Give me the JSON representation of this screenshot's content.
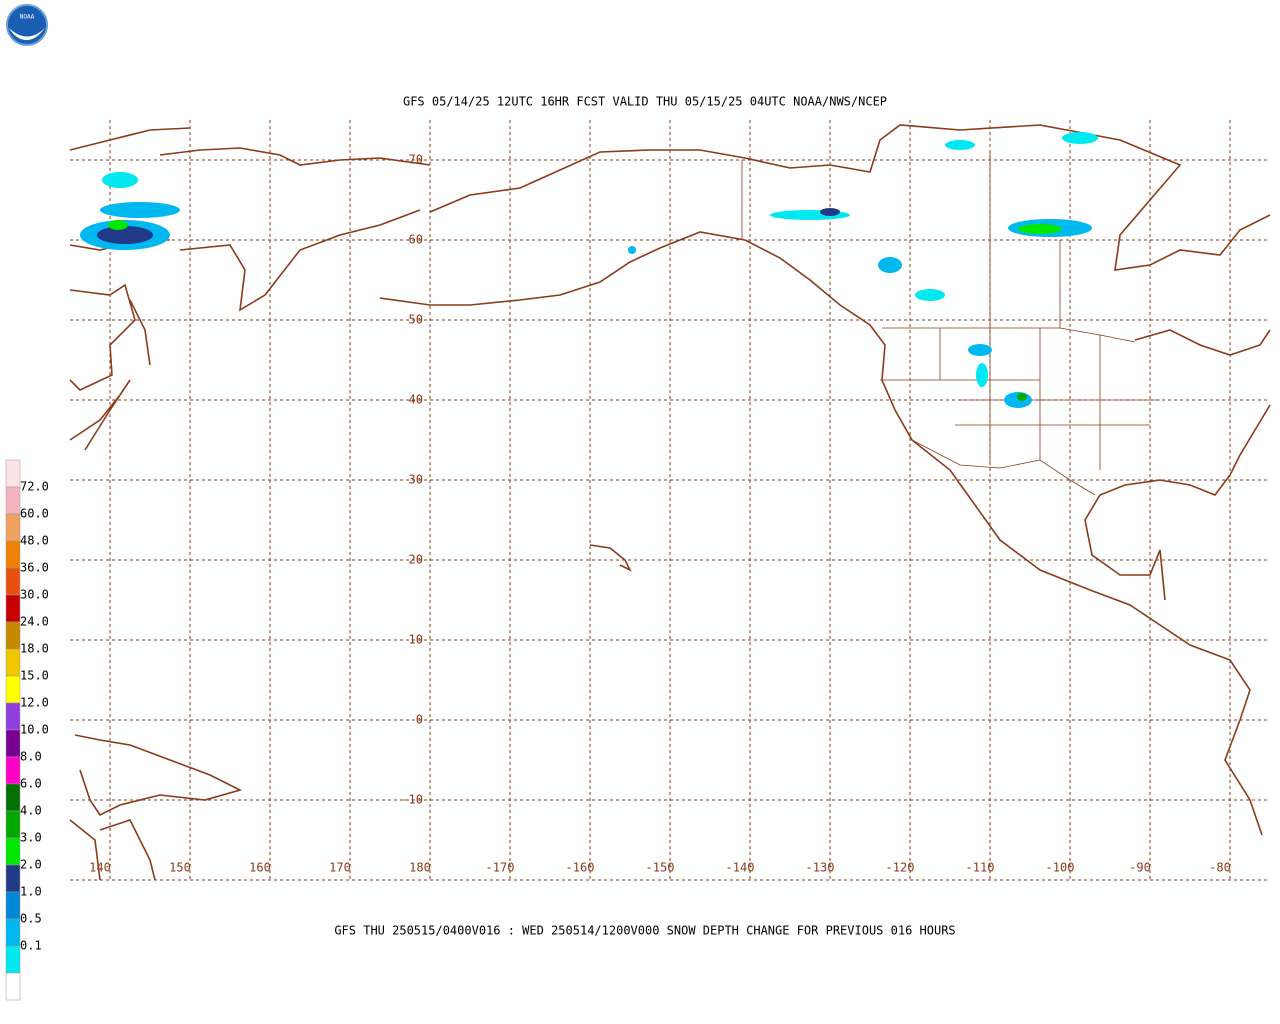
{
  "logo": {
    "text": "NOAA"
  },
  "header": {
    "title": "GFS 05/14/25 12UTC 16HR FCST VALID THU 05/15/25 04UTC NOAA/NWS/NCEP"
  },
  "map": {
    "lat_labels": [
      "70",
      "60",
      "50",
      "40",
      "30",
      "20",
      "10",
      "0",
      "-10"
    ],
    "lon_labels": [
      "140",
      "150",
      "160",
      "170",
      "180",
      "-170",
      "-160",
      "-150",
      "-140",
      "-130",
      "-120",
      "-110",
      "-100",
      "-90",
      "-80"
    ]
  },
  "legend": {
    "labels": [
      "72.0",
      "60.0",
      "48.0",
      "36.0",
      "30.0",
      "24.0",
      "18.0",
      "15.0",
      "12.0",
      "10.0",
      "8.0",
      "6.0",
      "4.0",
      "3.0",
      "2.0",
      "1.0",
      "0.5",
      "0.1"
    ],
    "colors": [
      "#fde4e4",
      "#f4b4c0",
      "#f0a060",
      "#f08000",
      "#e85010",
      "#c80000",
      "#c88800",
      "#f0c800",
      "#ffff00",
      "#9040e0",
      "#780090",
      "#ff00c8",
      "#007000",
      "#00a800",
      "#00e800",
      "#203a88",
      "#0088d8",
      "#00b8f0",
      "#00e8f0",
      "#ffffff"
    ]
  },
  "footer": {
    "text": "GFS THU 250515/0400V016 : WED 250514/1200V000 SNOW DEPTH CHANGE FOR PREVIOUS 016 HOURS"
  }
}
